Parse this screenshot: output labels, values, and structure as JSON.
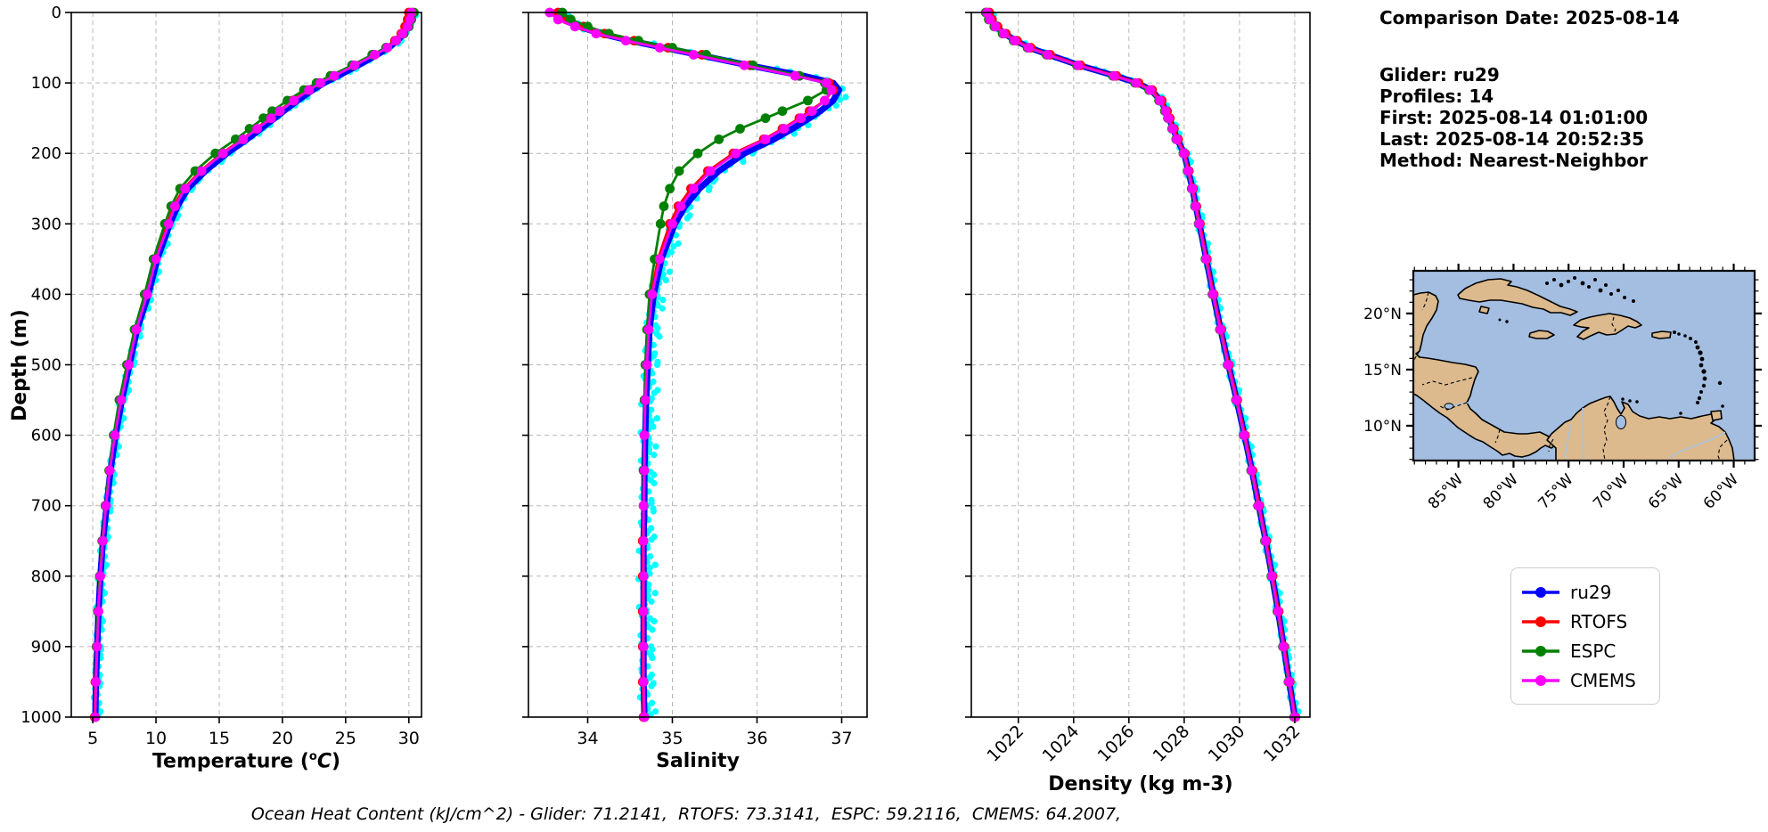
{
  "info": {
    "lines": [
      "Comparison Date: 2025-08-14",
      "Glider: ru29",
      "Profiles: 14",
      "First: 2025-08-14 01:01:00",
      "Last: 2025-08-14 20:52:35",
      "Method: Nearest-Neighbor"
    ]
  },
  "caption": {
    "text": "Ocean Heat Content (kJ/cm^2) - Glider: 71.2141,  RTOFS: 73.3141,  ESPC: 59.2116,  CMEMS: 64.2007,"
  },
  "legend": {
    "entries": [
      {
        "label": "ru29",
        "color": "#0000ff"
      },
      {
        "label": "RTOFS",
        "color": "#ff0000"
      },
      {
        "label": "ESPC",
        "color": "#008000"
      },
      {
        "label": "CMEMS",
        "color": "#ff00ff"
      }
    ]
  },
  "axes": {
    "depth_label": "Depth (m)",
    "depth_ticks": [
      0,
      100,
      200,
      300,
      400,
      500,
      600,
      700,
      800,
      900,
      1000
    ]
  },
  "xlabels": {
    "temperature": {
      "pre": "Temperature (",
      "sup": "o",
      "main": "C",
      "post": ")"
    },
    "salinity": "Salinity",
    "density": "Density (kg m-3)"
  },
  "map": {
    "ocean_color": "#a4bee2",
    "land_color": "#dcba8d",
    "river_color": "#a9c2dd",
    "lat_ticks": [
      {
        "label": "20°N",
        "lat": 20
      },
      {
        "label": "15°N",
        "lat": 15
      },
      {
        "label": "10°N",
        "lat": 10
      }
    ],
    "lon_ticks": [
      {
        "label": "85°W",
        "lon": -85
      },
      {
        "label": "80°W",
        "lon": -80
      },
      {
        "label": "75°W",
        "lon": -75
      },
      {
        "label": "70°W",
        "lon": -70
      },
      {
        "label": "65°W",
        "lon": -65
      },
      {
        "label": "60°W",
        "lon": -60
      }
    ],
    "lon_range": [
      -89.1,
      -58.1
    ],
    "lat_range": [
      23.8,
      6.9
    ]
  },
  "chart_data": [
    {
      "id": "temperature",
      "type": "line",
      "xlabel": "Temperature (°C)",
      "ylabel": "Depth (m)",
      "x_range": [
        3.3,
        31.0
      ],
      "x_ticks": [
        5,
        10,
        15,
        20,
        25,
        30
      ],
      "x_tick_rotation": 0,
      "y_range": [
        0,
        1000
      ],
      "grid": true,
      "depths": [
        0,
        10,
        20,
        30,
        40,
        50,
        60,
        75,
        90,
        100,
        110,
        125,
        140,
        150,
        165,
        180,
        200,
        225,
        250,
        275,
        300,
        350,
        400,
        450,
        500,
        550,
        600,
        650,
        700,
        750,
        800,
        850,
        900,
        950,
        1000
      ],
      "series": [
        {
          "name": "ru29",
          "color": "#0000ff",
          "values": [
            30.2,
            30.1,
            29.9,
            29.6,
            29.1,
            28.4,
            27.5,
            26.0,
            24.4,
            23.3,
            22.4,
            21.2,
            20.1,
            19.4,
            18.3,
            17.2,
            15.6,
            13.9,
            12.5,
            11.7,
            11.1,
            10.1,
            9.4,
            8.5,
            7.9,
            7.3,
            6.8,
            6.4,
            6.1,
            5.8,
            5.6,
            5.45,
            5.35,
            5.25,
            5.2
          ]
        },
        {
          "name": "RTOFS",
          "color": "#ff0000",
          "values": [
            30.0,
            29.9,
            29.7,
            29.4,
            28.9,
            28.2,
            27.2,
            25.6,
            24.0,
            22.9,
            22.0,
            20.8,
            19.7,
            19.0,
            17.9,
            16.8,
            15.2,
            13.5,
            12.2,
            11.4,
            10.9,
            9.9,
            9.2,
            8.4,
            7.8,
            7.2,
            6.7,
            6.3,
            6.0,
            5.75,
            5.55,
            5.4,
            5.3,
            5.2,
            5.15
          ]
        },
        {
          "name": "ESPC",
          "color": "#008000",
          "values": [
            30.4,
            30.2,
            30.0,
            29.6,
            29.0,
            28.2,
            27.1,
            25.5,
            23.8,
            22.7,
            21.7,
            20.4,
            19.2,
            18.5,
            17.4,
            16.3,
            14.7,
            13.1,
            11.9,
            11.2,
            10.7,
            9.8,
            9.1,
            8.3,
            7.7,
            7.1,
            6.65,
            6.3,
            6.0,
            5.75,
            5.55,
            5.4,
            5.3,
            5.25,
            5.2
          ]
        },
        {
          "name": "CMEMS",
          "color": "#ff00ff",
          "values": [
            30.2,
            30.1,
            29.9,
            29.5,
            29.0,
            28.3,
            27.3,
            25.7,
            24.1,
            23.0,
            22.1,
            20.9,
            19.8,
            19.1,
            18.0,
            16.9,
            15.3,
            13.6,
            12.3,
            11.5,
            11.0,
            10.0,
            9.3,
            8.45,
            7.85,
            7.25,
            6.75,
            6.35,
            6.05,
            5.8,
            5.6,
            5.45,
            5.35,
            5.25,
            5.2
          ]
        }
      ],
      "raw_scatter": {
        "name": "glider raw points",
        "color": "#00ffff",
        "amplitude": 0.3,
        "bias": 0.12
      }
    },
    {
      "id": "salinity",
      "type": "line",
      "xlabel": "Salinity",
      "ylabel": "Depth (m)",
      "x_range": [
        33.3,
        37.3
      ],
      "x_ticks": [
        34,
        35,
        36,
        37
      ],
      "x_tick_rotation": 0,
      "y_range": [
        0,
        1000
      ],
      "grid": true,
      "depths": [
        0,
        10,
        20,
        30,
        40,
        50,
        60,
        75,
        90,
        100,
        110,
        125,
        140,
        150,
        165,
        180,
        200,
        225,
        250,
        275,
        300,
        350,
        400,
        450,
        500,
        550,
        600,
        650,
        700,
        750,
        800,
        850,
        900,
        950,
        1000
      ],
      "series": [
        {
          "name": "ru29",
          "color": "#0000ff",
          "values": [
            33.6,
            33.7,
            33.9,
            34.15,
            34.5,
            34.9,
            35.3,
            35.9,
            36.55,
            36.9,
            36.97,
            36.9,
            36.75,
            36.62,
            36.42,
            36.2,
            35.85,
            35.55,
            35.32,
            35.15,
            35.03,
            34.87,
            34.78,
            34.73,
            34.71,
            34.69,
            34.68,
            34.67,
            34.67,
            34.66,
            34.66,
            34.66,
            34.66,
            34.66,
            34.67
          ]
        },
        {
          "name": "RTOFS",
          "color": "#ff0000",
          "values": [
            33.65,
            33.75,
            33.95,
            34.2,
            34.55,
            34.95,
            35.35,
            35.92,
            36.5,
            36.85,
            36.9,
            36.8,
            36.62,
            36.5,
            36.3,
            36.08,
            35.72,
            35.42,
            35.22,
            35.07,
            34.97,
            34.83,
            34.75,
            34.71,
            34.69,
            34.68,
            34.67,
            34.66,
            34.66,
            34.65,
            34.65,
            34.65,
            34.65,
            34.65,
            34.66
          ]
        },
        {
          "name": "ESPC",
          "color": "#008000",
          "values": [
            33.7,
            33.8,
            34.0,
            34.25,
            34.6,
            35.0,
            35.4,
            35.95,
            36.5,
            36.8,
            36.82,
            36.6,
            36.3,
            36.1,
            35.8,
            35.55,
            35.3,
            35.08,
            34.97,
            34.9,
            34.86,
            34.79,
            34.73,
            34.7,
            34.68,
            34.67,
            34.67,
            34.66,
            34.66,
            34.66,
            34.66,
            34.66,
            34.66,
            34.66,
            34.67
          ]
        },
        {
          "name": "CMEMS",
          "color": "#ff00ff",
          "values": [
            33.55,
            33.65,
            33.85,
            34.1,
            34.45,
            34.85,
            35.25,
            35.85,
            36.45,
            36.82,
            36.88,
            36.8,
            36.65,
            36.52,
            36.32,
            36.1,
            35.75,
            35.45,
            35.25,
            35.1,
            35.0,
            34.85,
            34.76,
            34.72,
            34.7,
            34.68,
            34.67,
            34.67,
            34.66,
            34.66,
            34.66,
            34.66,
            34.66,
            34.66,
            34.67
          ]
        }
      ],
      "raw_scatter": {
        "name": "glider raw points",
        "color": "#00ffff",
        "amplitude": 0.1,
        "bias": 0.04
      }
    },
    {
      "id": "density",
      "type": "line",
      "xlabel": "Density (kg m-3)",
      "ylabel": "Depth (m)",
      "x_range": [
        1020.3,
        1032.55
      ],
      "x_ticks": [
        1022,
        1024,
        1026,
        1028,
        1030,
        1032
      ],
      "x_tick_rotation": 45,
      "y_range": [
        0,
        1000
      ],
      "grid": true,
      "depths": [
        0,
        10,
        20,
        30,
        40,
        50,
        60,
        75,
        90,
        100,
        110,
        125,
        140,
        150,
        165,
        180,
        200,
        225,
        250,
        275,
        300,
        350,
        400,
        450,
        500,
        550,
        600,
        650,
        700,
        750,
        800,
        850,
        900,
        950,
        1000
      ],
      "series": [
        {
          "name": "ru29",
          "color": "#0000ff",
          "values": [
            1020.9,
            1021.0,
            1021.2,
            1021.5,
            1021.9,
            1022.4,
            1023.1,
            1024.2,
            1025.5,
            1026.3,
            1026.8,
            1027.15,
            1027.35,
            1027.45,
            1027.6,
            1027.75,
            1028.0,
            1028.15,
            1028.3,
            1028.42,
            1028.55,
            1028.8,
            1029.05,
            1029.32,
            1029.6,
            1029.9,
            1030.18,
            1030.45,
            1030.7,
            1030.95,
            1031.18,
            1031.4,
            1031.6,
            1031.8,
            1032.0
          ]
        },
        {
          "name": "RTOFS",
          "color": "#ff0000",
          "values": [
            1020.95,
            1021.05,
            1021.25,
            1021.55,
            1021.95,
            1022.45,
            1023.15,
            1024.25,
            1025.55,
            1026.35,
            1026.84,
            1027.19,
            1027.38,
            1027.48,
            1027.63,
            1027.78,
            1028.02,
            1028.17,
            1028.32,
            1028.44,
            1028.57,
            1028.82,
            1029.07,
            1029.34,
            1029.62,
            1029.92,
            1030.2,
            1030.47,
            1030.72,
            1030.97,
            1031.2,
            1031.42,
            1031.62,
            1031.82,
            1032.02
          ]
        },
        {
          "name": "ESPC",
          "color": "#008000",
          "values": [
            1020.82,
            1020.93,
            1021.13,
            1021.43,
            1021.83,
            1022.33,
            1023.02,
            1024.12,
            1025.42,
            1026.22,
            1026.73,
            1027.09,
            1027.3,
            1027.41,
            1027.56,
            1027.71,
            1027.97,
            1028.12,
            1028.27,
            1028.39,
            1028.52,
            1028.77,
            1029.02,
            1029.29,
            1029.57,
            1029.87,
            1030.15,
            1030.42,
            1030.67,
            1030.92,
            1031.15,
            1031.37,
            1031.57,
            1031.77,
            1031.98
          ]
        },
        {
          "name": "CMEMS",
          "color": "#ff00ff",
          "values": [
            1020.86,
            1020.97,
            1021.17,
            1021.47,
            1021.87,
            1022.37,
            1023.06,
            1024.16,
            1025.46,
            1026.26,
            1026.77,
            1027.12,
            1027.33,
            1027.43,
            1027.58,
            1027.73,
            1027.99,
            1028.14,
            1028.29,
            1028.41,
            1028.54,
            1028.79,
            1029.04,
            1029.31,
            1029.59,
            1029.89,
            1030.17,
            1030.44,
            1030.69,
            1030.94,
            1031.17,
            1031.39,
            1031.59,
            1031.79,
            1032.0
          ]
        }
      ],
      "raw_scatter": {
        "name": "glider raw points",
        "color": "#00ffff",
        "amplitude": 0.13,
        "bias": 0.05
      }
    }
  ]
}
